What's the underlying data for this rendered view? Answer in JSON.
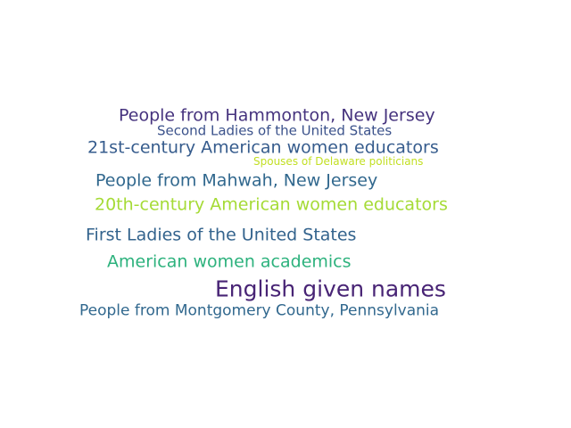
{
  "word_cloud": {
    "words": [
      {
        "text": "People from Hammonton, New Jersey",
        "color": "#46337e"
      },
      {
        "text": "Second Ladies of the United States",
        "color": "#3b528b"
      },
      {
        "text": "21st-century American women educators",
        "color": "#365c8d"
      },
      {
        "text": "Spouses of Delaware politicians",
        "color": "#c2df23"
      },
      {
        "text": "People from Mahwah, New Jersey",
        "color": "#31688e"
      },
      {
        "text": "20th-century American women educators",
        "color": "#a5db36"
      },
      {
        "text": "First Ladies of the United States",
        "color": "#33638d"
      },
      {
        "text": "American women academics",
        "color": "#2db27d"
      },
      {
        "text": "English given names",
        "color": "#482475"
      },
      {
        "text": "People from Montgomery County, Pennsylvania",
        "color": "#31688e"
      }
    ]
  }
}
